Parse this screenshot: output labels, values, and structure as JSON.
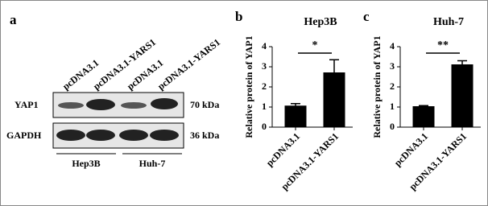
{
  "blot": {
    "panel": "a",
    "lanes": [
      "pcDNA3.1",
      "pcDNA3.1-YARS1",
      "pcDNA3.1",
      "pcDNA3.1-YARS1"
    ],
    "rows": [
      {
        "label": "YAP1",
        "size": "70 kDa"
      },
      {
        "label": "GAPDH",
        "size": "36 kDa"
      }
    ],
    "groups": [
      "Hep3B",
      "Huh-7"
    ]
  },
  "chart_data": [
    {
      "type": "bar",
      "panel": "b",
      "title": "Hep3B",
      "ylabel": "Relative protein of YAP1",
      "categories": [
        "pcDNA3.1",
        "pcDNA3.1-YARS1"
      ],
      "values": [
        1.05,
        2.7
      ],
      "errors": [
        0.12,
        0.65
      ],
      "color": "#000000",
      "ylim": [
        0,
        4
      ],
      "yticks": [
        0,
        1,
        2,
        3,
        4
      ],
      "significance": "*"
    },
    {
      "type": "bar",
      "panel": "c",
      "title": "Huh-7",
      "ylabel": "Relative protein of YAP1",
      "categories": [
        "pcDNA3.1",
        "pcDNA3.1-YARS1"
      ],
      "values": [
        1.02,
        3.1
      ],
      "errors": [
        0.05,
        0.2
      ],
      "color": "#000000",
      "ylim": [
        0,
        4
      ],
      "yticks": [
        0,
        1,
        2,
        3,
        4
      ],
      "significance": "**"
    }
  ]
}
